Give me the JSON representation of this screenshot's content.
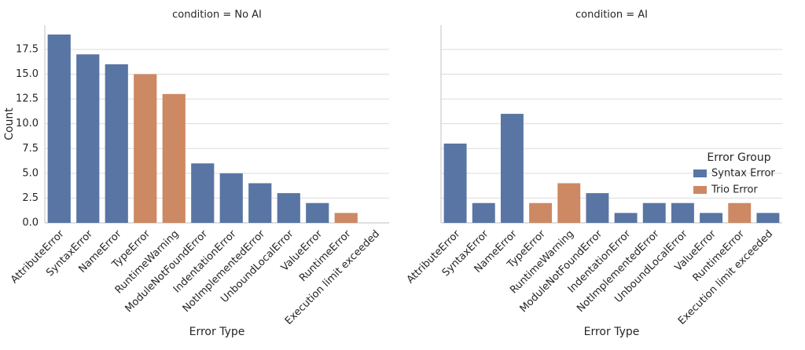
{
  "chart_data": [
    {
      "type": "bar",
      "title": "condition = No AI",
      "xlabel": "Error Type",
      "ylabel": "Count",
      "categories": [
        "AttributeError",
        "SyntaxError",
        "NameError",
        "TypeError",
        "RuntimeWarning",
        "ModuleNotFoundError",
        "IndentationError",
        "NotImplementedError",
        "UnboundLocalError",
        "ValueError",
        "RuntimeError",
        "Execution limit exceeded"
      ],
      "series": [
        {
          "name": "Syntax Error",
          "color": "#5975a4",
          "values": [
            19,
            17,
            16,
            null,
            null,
            6,
            5,
            4,
            3,
            2,
            null,
            null
          ]
        },
        {
          "name": "Trio Error",
          "color": "#cc8963",
          "values": [
            null,
            null,
            null,
            15,
            13,
            null,
            null,
            null,
            null,
            null,
            1,
            null
          ]
        }
      ],
      "ylim": [
        0,
        19.95
      ],
      "yticks": [
        {
          "value": 0,
          "label": "0.0"
        },
        {
          "value": 2.5,
          "label": "2.5"
        },
        {
          "value": 5,
          "label": "5.0"
        },
        {
          "value": 7.5,
          "label": "7.5"
        },
        {
          "value": 10,
          "label": "10.0"
        },
        {
          "value": 12.5,
          "label": "12.5"
        },
        {
          "value": 15,
          "label": "15.0"
        },
        {
          "value": 17.5,
          "label": "17.5"
        }
      ],
      "grid": true
    },
    {
      "type": "bar",
      "title": "condition = AI",
      "xlabel": "Error Type",
      "legend_title": "Error Group",
      "categories": [
        "AttributeError",
        "SyntaxError",
        "NameError",
        "TypeError",
        "RuntimeWarning",
        "ModuleNotFoundError",
        "IndentationError",
        "NotImplementedError",
        "UnboundLocalError",
        "ValueError",
        "RuntimeError",
        "Execution limit exceeded"
      ],
      "series": [
        {
          "name": "Syntax Error",
          "color": "#5975a4",
          "values": [
            8,
            2,
            11,
            null,
            null,
            3,
            1,
            2,
            2,
            1,
            null,
            1
          ]
        },
        {
          "name": "Trio Error",
          "color": "#cc8963",
          "values": [
            null,
            null,
            null,
            2,
            4,
            null,
            null,
            null,
            null,
            null,
            2,
            null
          ]
        }
      ],
      "grid": true,
      "legend": "right"
    }
  ]
}
